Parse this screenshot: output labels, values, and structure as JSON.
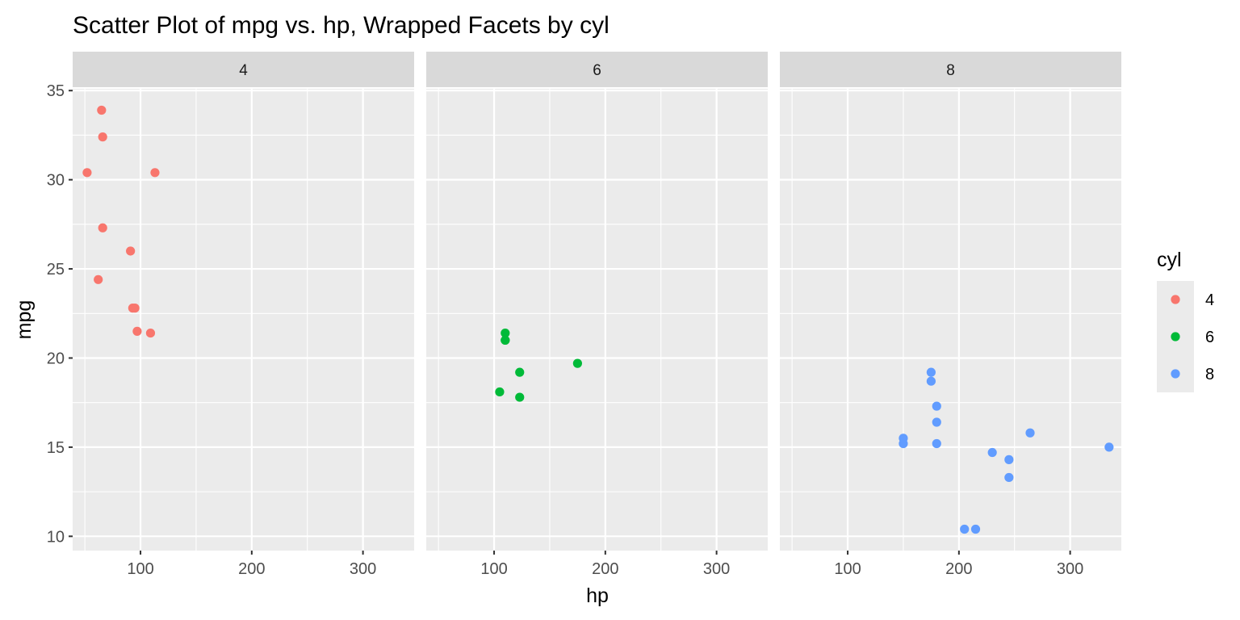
{
  "chart_data": {
    "type": "scatter",
    "title": "Scatter Plot of mpg vs. hp, Wrapped Facets by cyl",
    "xlabel": "hp",
    "ylabel": "mpg",
    "xlim": [
      39,
      346
    ],
    "ylim": [
      9.2,
      35.1
    ],
    "x_ticks": [
      100,
      200,
      300
    ],
    "y_ticks": [
      10,
      15,
      20,
      25,
      30,
      35
    ],
    "facet_var": "cyl",
    "grid": true,
    "legend": {
      "title": "cyl",
      "placement": "right",
      "entries": [
        "4",
        "6",
        "8"
      ]
    },
    "colors": {
      "4": "#F8766D",
      "6": "#00BA38",
      "8": "#619CFF"
    },
    "facets": [
      {
        "label": "4",
        "points": [
          {
            "x": 65,
            "y": 33.9
          },
          {
            "x": 66,
            "y": 32.4
          },
          {
            "x": 52,
            "y": 30.4
          },
          {
            "x": 113,
            "y": 30.4
          },
          {
            "x": 66,
            "y": 27.3
          },
          {
            "x": 91,
            "y": 26.0
          },
          {
            "x": 62,
            "y": 24.4
          },
          {
            "x": 93,
            "y": 22.8
          },
          {
            "x": 95,
            "y": 22.8
          },
          {
            "x": 97,
            "y": 21.5
          },
          {
            "x": 109,
            "y": 21.4
          }
        ]
      },
      {
        "label": "6",
        "points": [
          {
            "x": 110,
            "y": 21.4
          },
          {
            "x": 110,
            "y": 21.0
          },
          {
            "x": 110,
            "y": 21.0
          },
          {
            "x": 175,
            "y": 19.7
          },
          {
            "x": 123,
            "y": 19.2
          },
          {
            "x": 105,
            "y": 18.1
          },
          {
            "x": 123,
            "y": 17.8
          }
        ]
      },
      {
        "label": "8",
        "points": [
          {
            "x": 175,
            "y": 19.2
          },
          {
            "x": 175,
            "y": 18.7
          },
          {
            "x": 180,
            "y": 17.3
          },
          {
            "x": 180,
            "y": 16.4
          },
          {
            "x": 264,
            "y": 15.8
          },
          {
            "x": 150,
            "y": 15.5
          },
          {
            "x": 150,
            "y": 15.2
          },
          {
            "x": 180,
            "y": 15.2
          },
          {
            "x": 335,
            "y": 15.0
          },
          {
            "x": 230,
            "y": 14.7
          },
          {
            "x": 245,
            "y": 14.3
          },
          {
            "x": 245,
            "y": 13.3
          },
          {
            "x": 205,
            "y": 10.4
          },
          {
            "x": 215,
            "y": 10.4
          }
        ]
      }
    ]
  }
}
